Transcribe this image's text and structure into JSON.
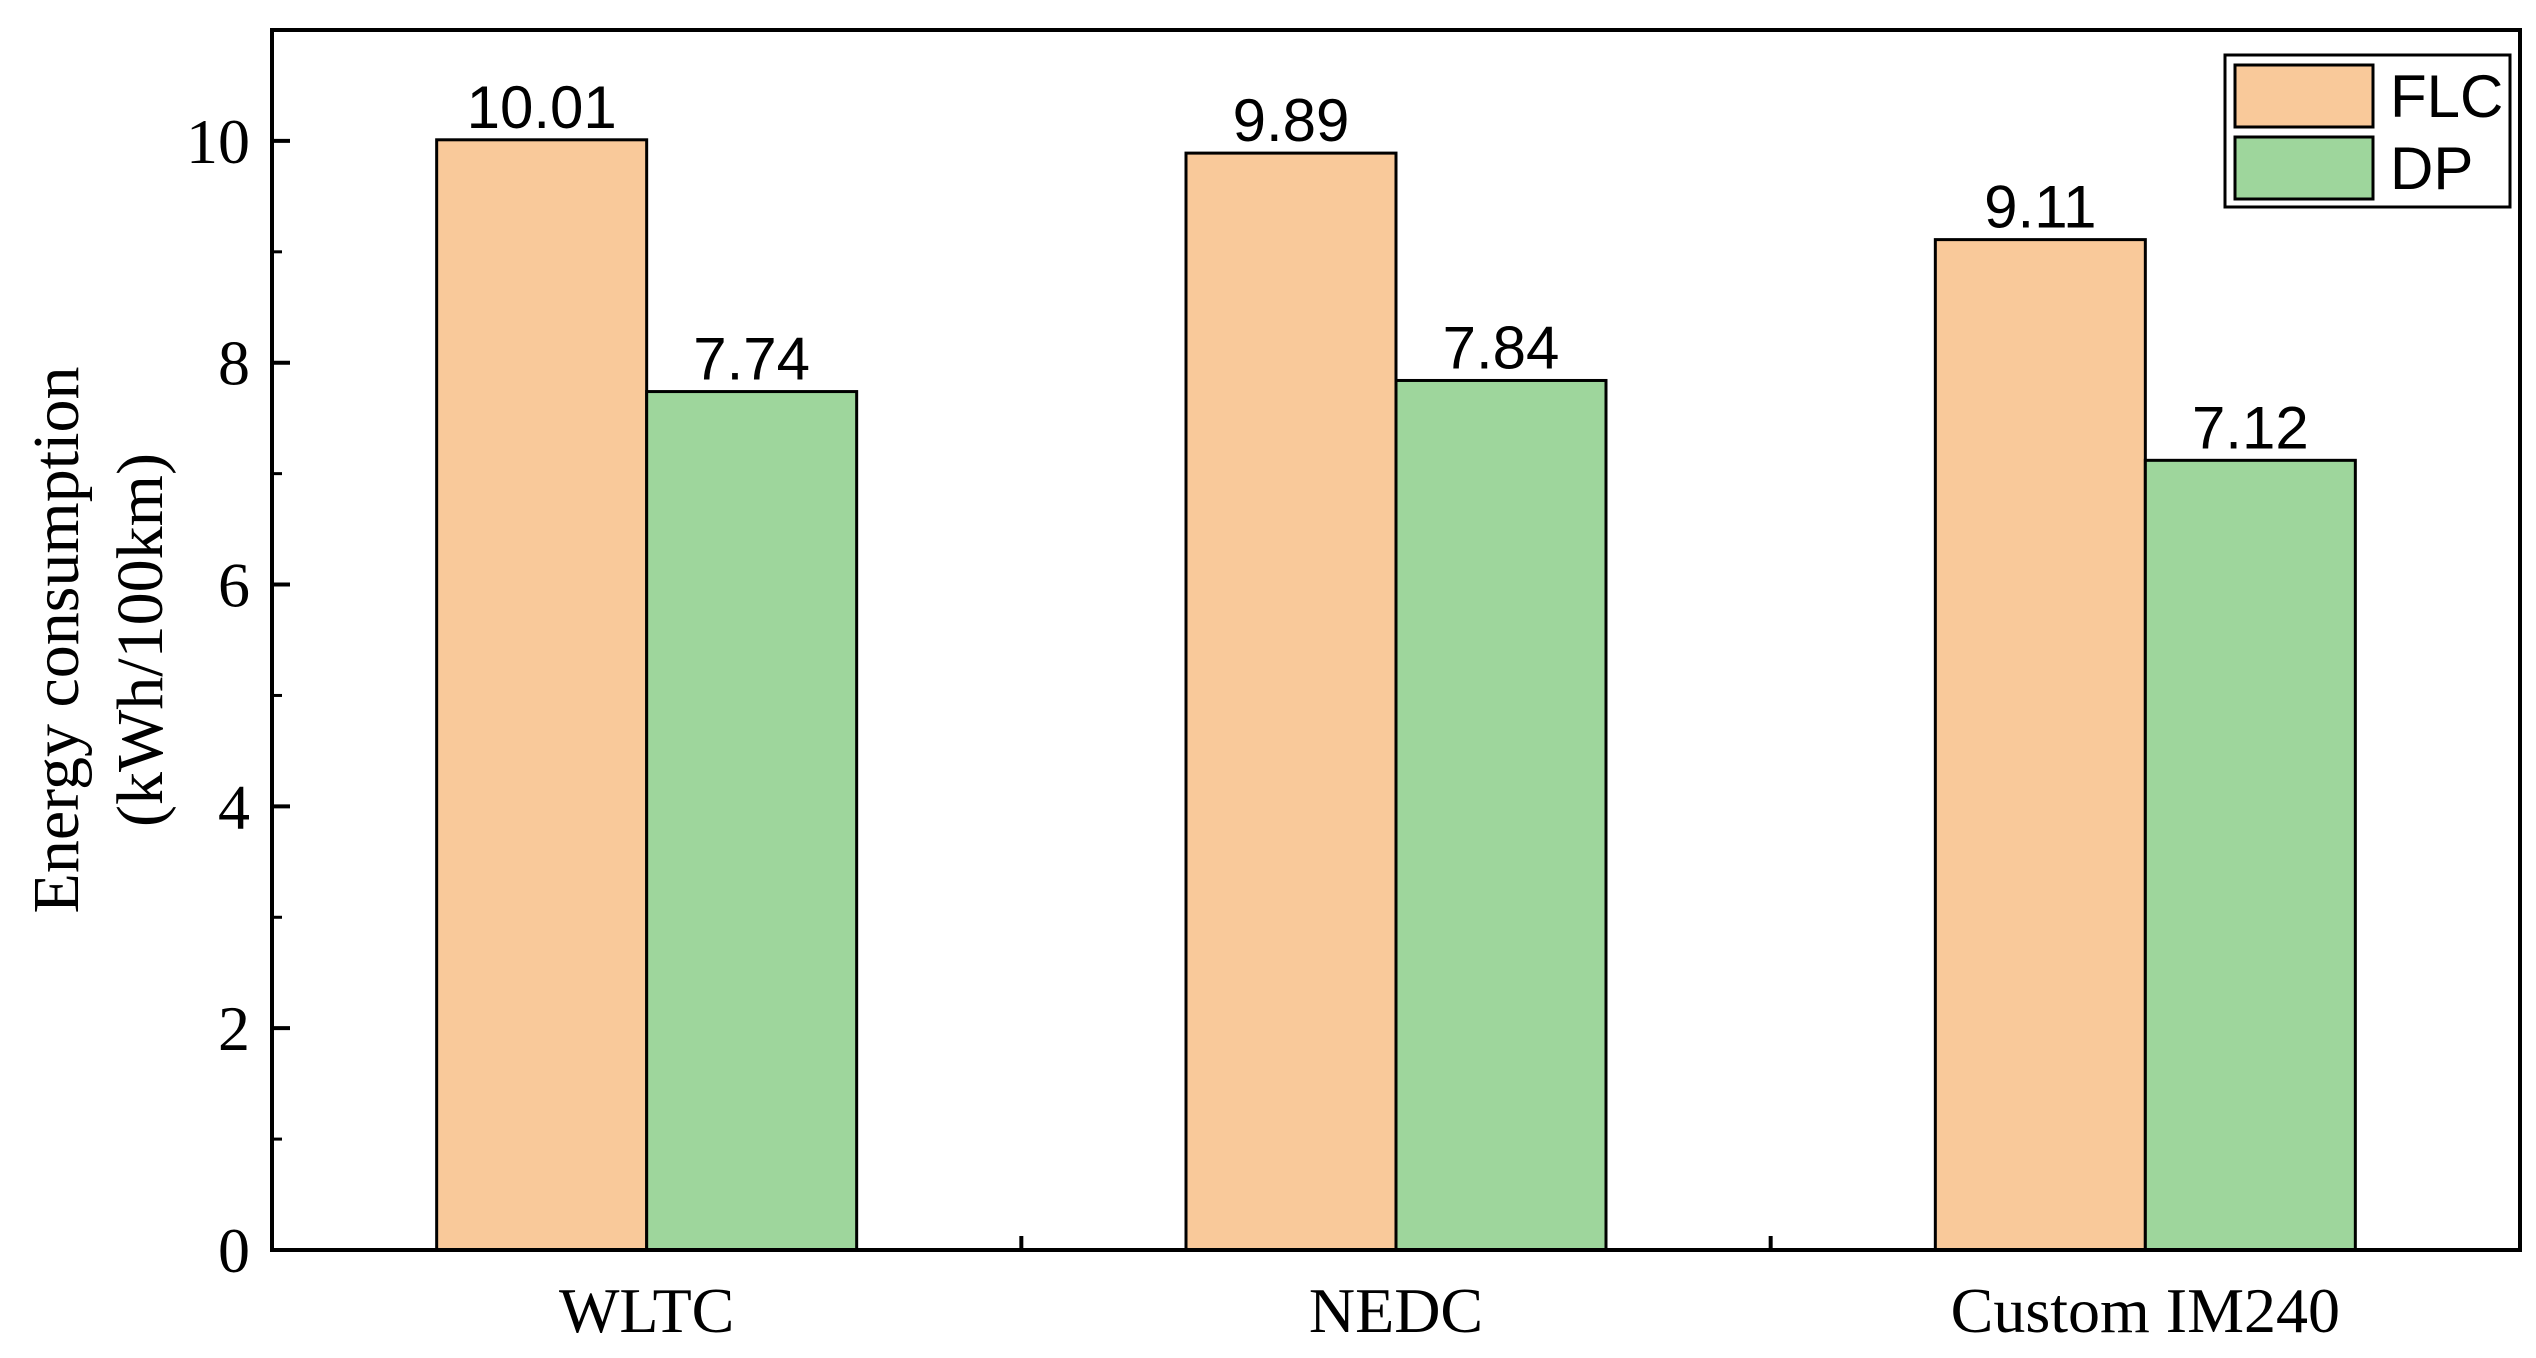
{
  "chart_data": {
    "type": "bar",
    "categories": [
      "WLTC",
      "NEDC",
      "Custom IM240"
    ],
    "series": [
      {
        "name": "FLC",
        "values": [
          10.01,
          9.89,
          9.11
        ],
        "color": "#F9C99A"
      },
      {
        "name": "DP",
        "values": [
          7.74,
          7.84,
          7.12
        ],
        "color": "#9ED69C"
      }
    ],
    "value_labels": [
      [
        "10.01",
        "9.89",
        "9.11"
      ],
      [
        "7.74",
        "7.84",
        "7.12"
      ]
    ],
    "ylabel_lines": [
      "Energy consumption",
      "(kWh/100km)"
    ],
    "ylim": [
      0,
      11
    ],
    "yticks": [
      0,
      2,
      4,
      6,
      8,
      10
    ],
    "ytick_labels": [
      "0",
      "2",
      "4",
      "6",
      "8",
      "10"
    ],
    "legend_position": "top-right",
    "grid": false
  }
}
